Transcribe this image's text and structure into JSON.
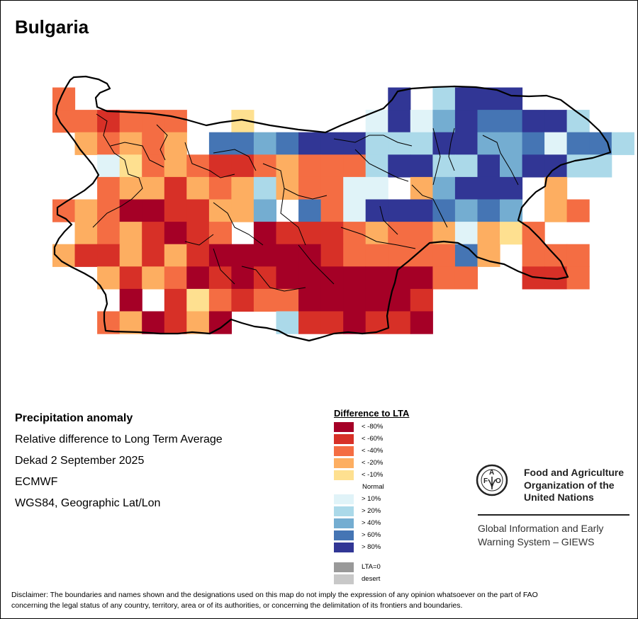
{
  "title": "Bulgaria",
  "info": {
    "variable": "Precipitation anomaly",
    "description": "Relative difference to Long Term Average",
    "period": "Dekad 2 September 2025",
    "source": "ECMWF",
    "projection": "WGS84, Geographic Lat/Lon"
  },
  "legend": {
    "title": "Difference to LTA",
    "classes": [
      {
        "code": "8",
        "label": "< -80%",
        "color": "#a50026"
      },
      {
        "code": "6",
        "label": "< -60%",
        "color": "#d73027"
      },
      {
        "code": "4",
        "label": "< -40%",
        "color": "#f46d43"
      },
      {
        "code": "2",
        "label": "< -20%",
        "color": "#fdae61"
      },
      {
        "code": "1",
        "label": "< -10%",
        "color": "#fee090"
      },
      {
        "code": "0",
        "label": "Normal",
        "color": "#ffffff"
      },
      {
        "code": "a",
        "label": "> 10%",
        "color": "#e0f3f8"
      },
      {
        "code": "b",
        "label": "> 20%",
        "color": "#abd9e9"
      },
      {
        "code": "c",
        "label": "> 40%",
        "color": "#74add1"
      },
      {
        "code": "d",
        "label": "> 60%",
        "color": "#4575b4"
      },
      {
        "code": "e",
        "label": "> 80%",
        "color": "#313695"
      }
    ],
    "extra": [
      {
        "label": "LTA=0",
        "color": "#999999"
      },
      {
        "label": "desert",
        "color": "#c8c8c8"
      }
    ]
  },
  "grid": [
    "4..............e.beee....",
    "4464440010....aeaceddeeb.",
    ".24242.ddcdeeebbbeeccdaddb",
    "..a14246642444beebbeceebb..",
    "..4226242b244aa.2ceee02...",
    "424886622c0d4aeeedcdc024..",
    ".24268640866642442a214....",
    "266262688888644444d20444..",
    "..26248686888888844..664.",
    "...80614644888886.......",
    "..428628..b668668........"
  ],
  "fao": {
    "logo_text": "FAO FIAT PANIS",
    "name_lines": [
      "Food and Agriculture",
      "Organization of the",
      "United Nations"
    ],
    "giews_lines": [
      "Global Information and Early",
      "Warning System – GIEWS"
    ]
  },
  "disclaimer": [
    "Disclaimer: The boundaries and names shown and the designations used on this map do not imply the expression of any opinion whatsoever on the part of FAO",
    "concerning the legal status of any country, territory, area or of its authorities, or concerning the delimitation of its frontiers and boundaries."
  ]
}
